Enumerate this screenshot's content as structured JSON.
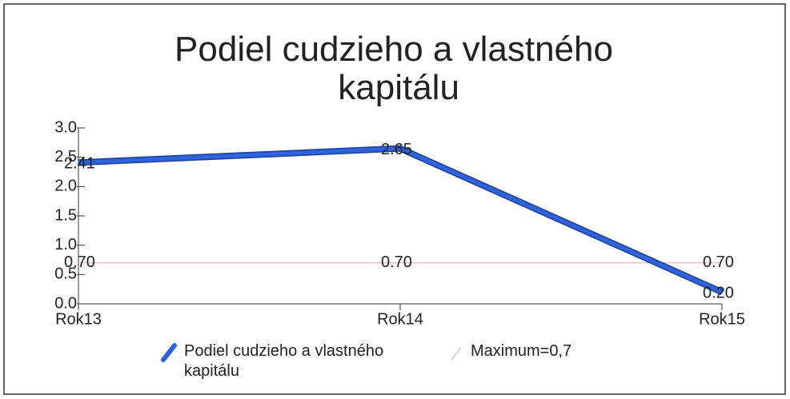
{
  "chart_data": {
    "type": "line",
    "title": "Podiel cudzieho a vlastného kapitálu",
    "categories": [
      "Rok13",
      "Rok14",
      "Rok15"
    ],
    "series": [
      {
        "name": "Podiel cudzieho a vlastného kapitálu",
        "color": "#2f63dc",
        "values": [
          2.41,
          2.65,
          0.2
        ],
        "value_labels": [
          "2.41",
          "2.65",
          "0.20"
        ]
      },
      {
        "name": "Maximum=0,7",
        "color": "#f3a9b8",
        "values": [
          0.7,
          0.7,
          0.7
        ],
        "value_labels": [
          "0.70",
          "0.70",
          "0.70"
        ]
      }
    ],
    "ylim": [
      0,
      3
    ],
    "yticks": [
      {
        "value": 0,
        "label": "0.0"
      },
      {
        "value": 0.5,
        "label": "0.5"
      },
      {
        "value": 1,
        "label": "1.0"
      },
      {
        "value": 1.5,
        "label": "1.5"
      },
      {
        "value": 2,
        "label": "2.0"
      },
      {
        "value": 2.5,
        "label": "2.5"
      },
      {
        "value": 3,
        "label": "3.0"
      }
    ],
    "legend": "bottom"
  }
}
